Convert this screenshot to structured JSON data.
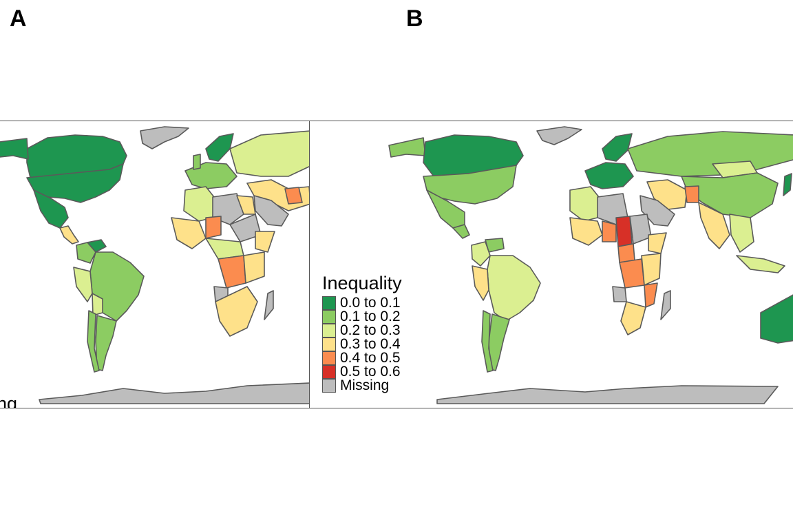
{
  "panels": {
    "a": "A",
    "b": "B"
  },
  "colors": {
    "c0": "#1e9650",
    "c1": "#8ccc62",
    "c2": "#dbef91",
    "c3": "#fee18a",
    "c4": "#fb8c4f",
    "c5": "#d73027",
    "missing": "#bdbdbd",
    "border": "#5a5a5a",
    "ocean": "#ffffff"
  },
  "panel_a": {
    "legend_fragment": "ng"
  },
  "legend": {
    "title": "Inequality",
    "items": [
      {
        "label": "0.0 to 0.1",
        "color": "#1e9650"
      },
      {
        "label": "0.1 to 0.2",
        "color": "#8ccc62"
      },
      {
        "label": "0.2 to 0.3",
        "color": "#dbef91"
      },
      {
        "label": "0.3 to 0.4",
        "color": "#fee18a"
      },
      {
        "label": "0.4 to 0.5",
        "color": "#fb8c4f"
      },
      {
        "label": "0.5 to 0.6",
        "color": "#d73027"
      },
      {
        "label": "Missing",
        "color": "#bdbdbd"
      }
    ]
  }
}
